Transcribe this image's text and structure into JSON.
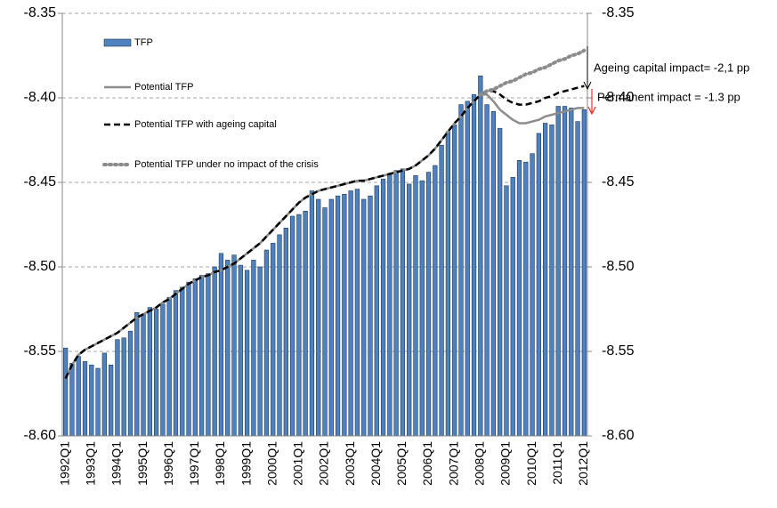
{
  "chart_data": {
    "type": "bar",
    "categories": [
      "1992Q1",
      null,
      null,
      null,
      "1993Q1",
      null,
      null,
      null,
      "1994Q1",
      null,
      null,
      null,
      "1995Q1",
      null,
      null,
      null,
      "1996Q1",
      null,
      null,
      null,
      "1997Q1",
      null,
      null,
      null,
      "1998Q1",
      null,
      null,
      null,
      "1999Q1",
      null,
      null,
      null,
      "2000Q1",
      null,
      null,
      null,
      "2001Q1",
      null,
      null,
      null,
      "2002Q1",
      null,
      null,
      null,
      "2003Q1",
      null,
      null,
      null,
      "2004Q1",
      null,
      null,
      null,
      "2005Q1",
      null,
      null,
      null,
      "2006Q1",
      null,
      null,
      null,
      "2007Q1",
      null,
      null,
      null,
      "2008Q1",
      null,
      null,
      null,
      "2009Q1",
      null,
      null,
      null,
      "2010Q1",
      null,
      null,
      null,
      "2011Q1",
      null,
      null,
      null,
      "2012Q1"
    ],
    "series": [
      {
        "name": "TFP",
        "type": "bar",
        "color": "#4f81bd",
        "values": [
          -8.548,
          -8.557,
          -8.553,
          -8.556,
          -8.558,
          -8.56,
          -8.551,
          -8.558,
          -8.543,
          -8.542,
          -8.538,
          -8.527,
          -8.528,
          -8.524,
          -8.525,
          -8.522,
          -8.518,
          -8.514,
          -8.512,
          -8.509,
          -8.507,
          -8.505,
          -8.504,
          -8.5,
          -8.492,
          -8.496,
          -8.493,
          -8.499,
          -8.502,
          -8.496,
          -8.5,
          -8.49,
          -8.486,
          -8.481,
          -8.477,
          -8.47,
          -8.469,
          -8.467,
          -8.455,
          -8.46,
          -8.465,
          -8.46,
          -8.458,
          -8.457,
          -8.455,
          -8.454,
          -8.46,
          -8.458,
          -8.452,
          -8.448,
          -8.445,
          -8.443,
          -8.442,
          -8.451,
          -8.446,
          -8.449,
          -8.444,
          -8.44,
          -8.428,
          -8.42,
          -8.416,
          -8.404,
          -8.402,
          -8.398,
          -8.387,
          -8.404,
          -8.408,
          -8.418,
          -8.452,
          -8.447,
          -8.437,
          -8.438,
          -8.433,
          -8.421,
          -8.415,
          -8.416,
          -8.405,
          -8.405,
          -8.406,
          -8.414,
          -8.407
        ]
      },
      {
        "name": "Potential TFP",
        "type": "line",
        "dash": "solid",
        "color": "#8c8c8c",
        "values": [
          -8.566,
          -8.558,
          -8.552,
          -8.549,
          -8.547,
          -8.545,
          -8.543,
          -8.541,
          -8.539,
          -8.536,
          -8.533,
          -8.53,
          -8.528,
          -8.526,
          -8.524,
          -8.521,
          -8.519,
          -8.516,
          -8.513,
          -8.51,
          -8.508,
          -8.506,
          -8.505,
          -8.503,
          -8.502,
          -8.5,
          -8.498,
          -8.495,
          -8.492,
          -8.489,
          -8.486,
          -8.482,
          -8.478,
          -8.474,
          -8.47,
          -8.466,
          -8.462,
          -8.459,
          -8.457,
          -8.455,
          -8.454,
          -8.453,
          -8.452,
          -8.451,
          -8.45,
          -8.449,
          -8.449,
          -8.448,
          -8.447,
          -8.446,
          -8.445,
          -8.444,
          -8.443,
          -8.442,
          -8.44,
          -8.437,
          -8.434,
          -8.43,
          -8.425,
          -8.42,
          -8.415,
          -8.411,
          -8.406,
          -8.402,
          -8.398,
          -8.398,
          -8.402,
          -8.407,
          -8.41,
          -8.413,
          -8.415,
          -8.415,
          -8.414,
          -8.413,
          -8.411,
          -8.41,
          -8.409,
          -8.408,
          -8.407,
          -8.406,
          -8.406
        ]
      },
      {
        "name": "Potential TFP with ageing capital",
        "type": "line",
        "dash": "dashed",
        "color": "#000000",
        "values": [
          -8.566,
          -8.558,
          -8.552,
          -8.549,
          -8.547,
          -8.545,
          -8.543,
          -8.541,
          -8.539,
          -8.536,
          -8.533,
          -8.53,
          -8.528,
          -8.526,
          -8.524,
          -8.521,
          -8.519,
          -8.516,
          -8.513,
          -8.51,
          -8.508,
          -8.506,
          -8.505,
          -8.503,
          -8.502,
          -8.5,
          -8.498,
          -8.495,
          -8.492,
          -8.489,
          -8.486,
          -8.482,
          -8.478,
          -8.474,
          -8.47,
          -8.466,
          -8.462,
          -8.459,
          -8.457,
          -8.455,
          -8.454,
          -8.453,
          -8.452,
          -8.451,
          -8.45,
          -8.449,
          -8.449,
          -8.448,
          -8.447,
          -8.446,
          -8.445,
          -8.444,
          -8.443,
          -8.442,
          -8.44,
          -8.437,
          -8.434,
          -8.43,
          -8.425,
          -8.42,
          -8.415,
          -8.411,
          -8.406,
          -8.402,
          -8.398,
          -8.396,
          -8.396,
          -8.398,
          -8.401,
          -8.403,
          -8.404,
          -8.404,
          -8.403,
          -8.402,
          -8.4,
          -8.399,
          -8.397,
          -8.396,
          -8.395,
          -8.394,
          -8.393
        ]
      },
      {
        "name": "Potential TFP under no impact of the crisis",
        "type": "line",
        "dash": "dotted",
        "color": "#8c8c8c",
        "values": [
          null,
          null,
          null,
          null,
          null,
          null,
          null,
          null,
          null,
          null,
          null,
          null,
          null,
          null,
          null,
          null,
          null,
          null,
          null,
          null,
          null,
          null,
          null,
          null,
          null,
          null,
          null,
          null,
          null,
          null,
          null,
          null,
          null,
          null,
          null,
          null,
          null,
          null,
          null,
          null,
          null,
          null,
          null,
          null,
          null,
          null,
          null,
          null,
          null,
          null,
          null,
          null,
          null,
          null,
          null,
          null,
          null,
          null,
          null,
          null,
          null,
          null,
          null,
          null,
          -8.398,
          -8.396,
          -8.395,
          -8.393,
          -8.391,
          -8.39,
          -8.388,
          -8.386,
          -8.385,
          -8.383,
          -8.382,
          -8.38,
          -8.378,
          -8.377,
          -8.375,
          -8.374,
          -8.372
        ]
      }
    ],
    "ylim": [
      -8.6,
      -8.35
    ],
    "yticks": [
      {
        "value": -8.6,
        "label": "-8.60"
      },
      -8.55,
      {
        "value": -8.5,
        "label": "-8.50"
      },
      -8.45,
      {
        "value": -8.4,
        "label": "-8.40"
      },
      -8.35
    ],
    "y2lim": [
      -8.6,
      -8.35
    ],
    "y2ticks": [
      {
        "value": -8.6,
        "label": "-8.60"
      },
      -8.55,
      {
        "value": -8.5,
        "label": "-8.50"
      },
      -8.45,
      {
        "value": -8.4,
        "label": "-8.40"
      },
      -8.35
    ],
    "grid": true,
    "legend": "upper left",
    "annotations": [
      {
        "text": "Ageing capital impact= -2,1 pp",
        "color": "#000000"
      },
      {
        "text": "Permanent impact = -1.3 pp",
        "color": "#ff0000"
      }
    ]
  }
}
